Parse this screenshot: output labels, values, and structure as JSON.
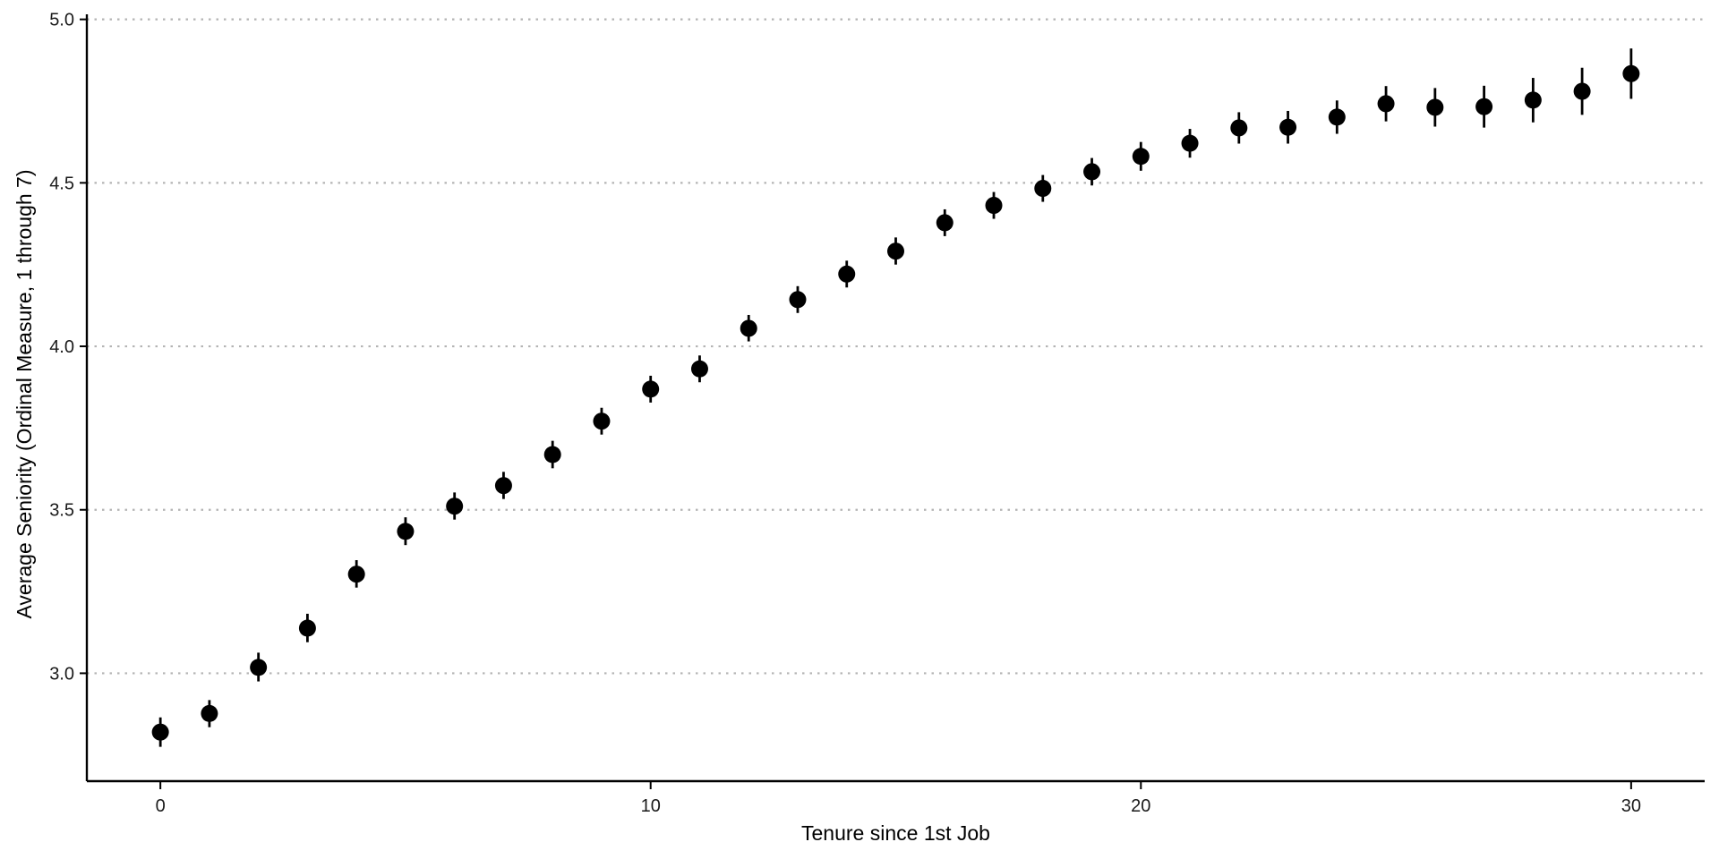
{
  "chart_data": {
    "type": "scatter",
    "title": "",
    "xlabel": "Tenure since 1st Job",
    "ylabel": "Average Seniority (Ordinal Measure, 1 through 7)",
    "xlim": [
      -1.5,
      31.5
    ],
    "ylim": [
      2.67,
      5.01
    ],
    "x_ticks": [
      0,
      10,
      20,
      30
    ],
    "x_tick_labels": [
      "0",
      "10",
      "20",
      "30"
    ],
    "y_ticks": [
      3.0,
      3.5,
      4.0,
      4.5,
      5.0
    ],
    "y_tick_labels": [
      "3.0",
      "3.5",
      "4.0",
      "4.5",
      "5.0"
    ],
    "grid": "horizontal dotted at y ticks",
    "legend": "none",
    "point_color": "#000000",
    "grid_color": "#b4b4b4",
    "series": [
      {
        "x": [
          0,
          1,
          2,
          3,
          4,
          5,
          6,
          7,
          8,
          9,
          10,
          11,
          12,
          13,
          14,
          15,
          16,
          17,
          18,
          19,
          20,
          21,
          22,
          23,
          24,
          25,
          26,
          27,
          28,
          29,
          30
        ],
        "y": [
          2.82,
          2.877,
          3.018,
          3.138,
          3.303,
          3.434,
          3.511,
          3.574,
          3.669,
          3.771,
          3.869,
          3.931,
          4.055,
          4.143,
          4.221,
          4.291,
          4.378,
          4.431,
          4.483,
          4.534,
          4.581,
          4.621,
          4.668,
          4.67,
          4.701,
          4.742,
          4.731,
          4.733,
          4.753,
          4.78,
          4.834
        ],
        "low": [
          2.775,
          2.835,
          2.975,
          3.095,
          3.262,
          3.392,
          3.47,
          3.533,
          3.627,
          3.73,
          3.828,
          3.89,
          4.015,
          4.102,
          4.18,
          4.25,
          4.337,
          4.39,
          4.442,
          4.492,
          4.537,
          4.577,
          4.62,
          4.62,
          4.65,
          4.688,
          4.672,
          4.669,
          4.685,
          4.708,
          4.757
        ],
        "high": [
          2.865,
          2.918,
          3.063,
          3.182,
          3.346,
          3.477,
          3.553,
          3.616,
          3.711,
          3.812,
          3.91,
          3.972,
          4.096,
          4.184,
          4.262,
          4.333,
          4.419,
          4.472,
          4.524,
          4.576,
          4.625,
          4.665,
          4.716,
          4.72,
          4.752,
          4.796,
          4.79,
          4.797,
          4.821,
          4.852,
          4.911
        ]
      }
    ]
  }
}
